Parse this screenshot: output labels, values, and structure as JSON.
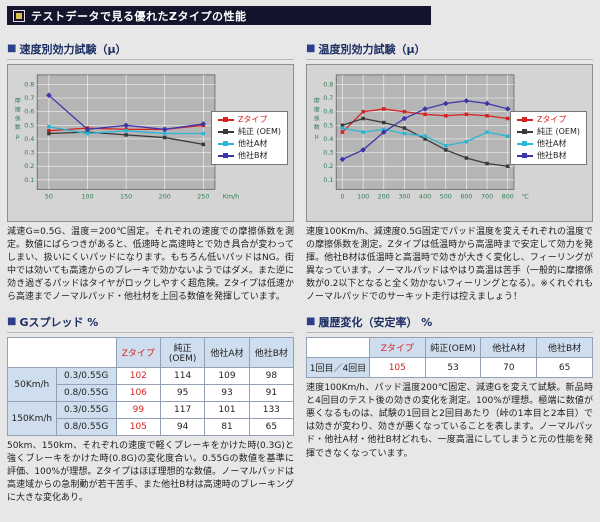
{
  "header": {
    "title": "テストデータで見る優れたZタイプの性能"
  },
  "ui": {
    "bullet": "■",
    "axis_color": "#2e7d52",
    "accent_red": "#d42420",
    "header_bg": "#14142c",
    "table_header_bg": "#cfdeee",
    "plot_bg": "#b5b5b5",
    "chart_bg": "#d4d4d4"
  },
  "left_column": {
    "chart_title": "速度別効力試験（μ）",
    "chart_caption": "減速G=0.5G、温度＝200℃固定。それぞれの速度での摩擦係数を測定。数値にばらつきがあると、低速時と高速時とで効き具合が変わってしまい、扱いにくいパッドになります。もちろん低いパッドはNG。街中では効いても高速からのブレーキで効かないようではダメ。また逆に効き過ぎるパッドはタイヤがロックしやすく超危険。Zタイプは低速から高速までノーマルパッド・他社材を上回る数値を発揮しています。",
    "table_title": "Gスプレッド %",
    "table": {
      "col_headers": [
        "Zタイプ",
        "純正(OEM)",
        "他社A材",
        "他社B材"
      ],
      "row_groups": [
        {
          "speed": "50Km/h",
          "rows": [
            {
              "g": "0.3/0.55G",
              "values": [
                102,
                114,
                109,
                98
              ]
            },
            {
              "g": "0.8/0.55G",
              "values": [
                106,
                95,
                93,
                91
              ]
            }
          ]
        },
        {
          "speed": "150Km/h",
          "rows": [
            {
              "g": "0.3/0.55G",
              "values": [
                99,
                117,
                101,
                133
              ]
            },
            {
              "g": "0.8/0.55G",
              "values": [
                105,
                94,
                81,
                65
              ]
            }
          ]
        }
      ]
    },
    "table_caption": "50km、150km、それぞれの速度で軽くブレーキをかけた時(0.3G)と強くブレーキをかけた時(0.8G)の変化度合い。0.55Gの数値を基準に評価、100%が理想。Zタイプはほぼ理想的な数値。ノーマルパッドは高速域からの急制動が若干苦手、また他社B材は高速時のブレーキングに大きな変化あり。"
  },
  "right_column": {
    "chart_title": "温度別効力試験（μ）",
    "chart_caption": "速度100Km/h、減速度0.5G固定でパッド温度を変えそれぞれの温度での摩擦係数を測定。Zタイプは低温時から高温時まで安定して効力を発揮。他社B材は低温時と高温時で効きが大きく変化し、フィーリングが異なっています。ノーマルパッドはやはり高温は苦手（一般的に摩擦係数が0.2以下となると全く効かないフィーリングとなる）。※くれぐれもノーマルパッドでのサーキット走行は控えましょう！",
    "table_title": "履歴変化（安定率） %",
    "table": {
      "col_headers": [
        "Zタイプ",
        "純正(OEM)",
        "他社A材",
        "他社B材"
      ],
      "row_label": "1回目／4回目",
      "values": [
        105,
        53,
        70,
        65
      ]
    },
    "table_caption": "速度100Km/h、パッド温度200℃固定、減速Gを変えて試験。新品時と4回目のテスト後の効きの変化を測定。100%が理想。極端に数値が悪くなるものは、試験の1回目と2回目あたり（峠の1本目と2本目）では効きが変わり、効きが悪くなっていることを表します。ノーマルパッド・他社A材・他社B材どれも、一度高温にしてしまうと元の性能を発揮できなくなっています。",
    "note_mark": "※"
  },
  "chart_data": [
    {
      "type": "line",
      "title": "速度別効力試験（μ）",
      "ylabel": "摩擦係数",
      "y_unit": "μ",
      "x_unit": "Km/h",
      "x": [
        50,
        100,
        150,
        200,
        250
      ],
      "x_range": [
        35,
        265
      ],
      "y_ticks": [
        0.1,
        0.2,
        0.3,
        0.4,
        0.5,
        0.6,
        0.7,
        0.8
      ],
      "y_range": [
        0.03,
        0.87
      ],
      "grid": true,
      "legend_position": "right",
      "series": [
        {
          "name": "Zタイプ",
          "color": "#d42420",
          "label_color": "#d42420",
          "marker": "square",
          "values": [
            0.46,
            0.48,
            0.47,
            0.47,
            0.5
          ]
        },
        {
          "name": "純正 (OEM)",
          "color": "#3a3a3a",
          "marker": "square",
          "values": [
            0.44,
            0.45,
            0.43,
            0.41,
            0.36
          ]
        },
        {
          "name": "他社A材",
          "color": "#2ab6d4",
          "marker": "square",
          "values": [
            0.49,
            0.44,
            0.46,
            0.44,
            0.44
          ]
        },
        {
          "name": "他社B材",
          "color": "#3b35a8",
          "marker": "diamond",
          "values": [
            0.72,
            0.47,
            0.5,
            0.47,
            0.51
          ]
        }
      ]
    },
    {
      "type": "line",
      "title": "温度別効力試験（μ）",
      "ylabel": "摩擦係数",
      "y_unit": "μ",
      "x_unit": "℃",
      "x": [
        0,
        100,
        200,
        300,
        400,
        500,
        600,
        700,
        800
      ],
      "x_range": [
        -30,
        830
      ],
      "y_ticks": [
        0.1,
        0.2,
        0.3,
        0.4,
        0.5,
        0.6,
        0.7,
        0.8
      ],
      "y_range": [
        0.03,
        0.87
      ],
      "grid": true,
      "legend_position": "right",
      "series": [
        {
          "name": "Zタイプ",
          "color": "#d42420",
          "label_color": "#d42420",
          "marker": "square",
          "values": [
            0.45,
            0.6,
            0.62,
            0.6,
            0.58,
            0.57,
            0.58,
            0.57,
            0.55
          ]
        },
        {
          "name": "純正 (OEM)",
          "color": "#3a3a3a",
          "marker": "square",
          "values": [
            0.5,
            0.55,
            0.52,
            0.48,
            0.4,
            0.32,
            0.26,
            0.22,
            0.2
          ]
        },
        {
          "name": "他社A材",
          "color": "#2ab6d4",
          "marker": "square",
          "values": [
            0.48,
            0.45,
            0.47,
            0.44,
            0.42,
            0.35,
            0.38,
            0.45,
            0.42
          ]
        },
        {
          "name": "他社B材",
          "color": "#3b35a8",
          "marker": "diamond",
          "values": [
            0.25,
            0.32,
            0.45,
            0.55,
            0.62,
            0.66,
            0.68,
            0.66,
            0.62
          ]
        }
      ]
    }
  ]
}
